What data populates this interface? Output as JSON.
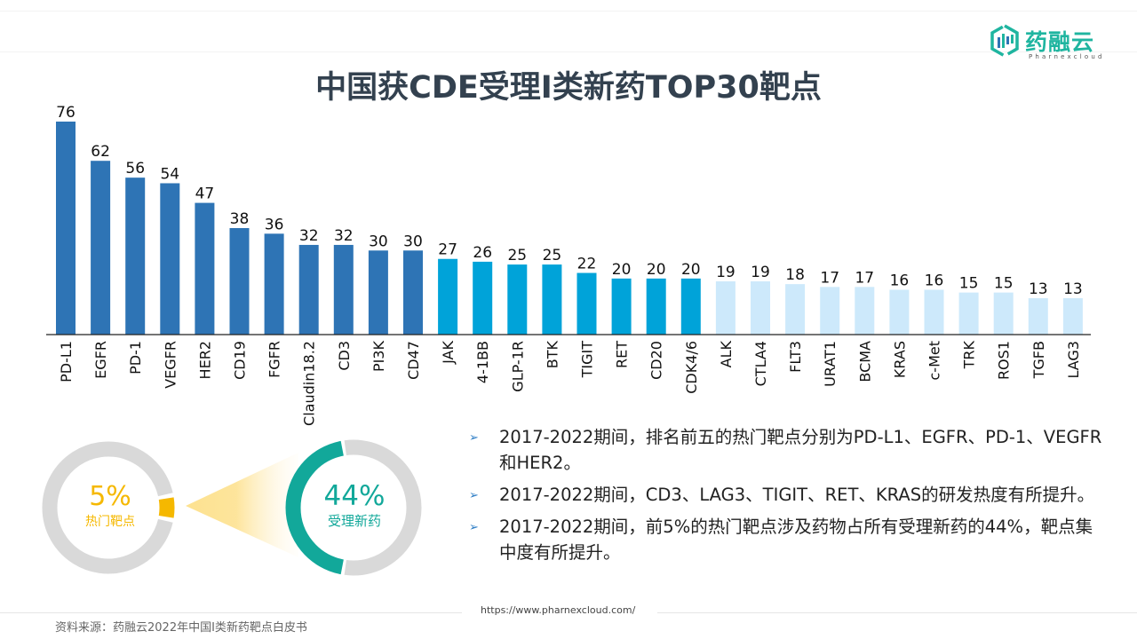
{
  "header": {
    "title": "中国获CDE受理I类新药TOP30靶点",
    "logo_text": "药融云",
    "logo_subtext": "Pharnexcloud"
  },
  "colors": {
    "top_tier": "#2e74b5",
    "mid_tier": "#00a3d9",
    "low_tier": "#cde9fb",
    "gold": "#f5b800",
    "teal": "#12a89a",
    "ring_gray": "#d9d9d9",
    "title": "#33414f"
  },
  "chart_data": {
    "type": "bar",
    "title": "中国获CDE受理I类新药TOP30靶点",
    "xlabel": "",
    "ylabel": "",
    "ylim": [
      0,
      76
    ],
    "grid": false,
    "legend": "none",
    "categories": [
      "PD-L1",
      "EGFR",
      "PD-1",
      "VEGFR",
      "HER2",
      "CD19",
      "FGFR",
      "Claudin18.2",
      "CD3",
      "PI3K",
      "CD47",
      "JAK",
      "4-1BB",
      "GLP-1R",
      "BTK",
      "TIGIT",
      "RET",
      "CD20",
      "CDK4/6",
      "ALK",
      "CTLA4",
      "FLT3",
      "URAT1",
      "BCMA",
      "KRAS",
      "c-Met",
      "TRK",
      "ROS1",
      "TGFB",
      "LAG3"
    ],
    "values": [
      76,
      62,
      56,
      54,
      47,
      38,
      36,
      32,
      32,
      30,
      30,
      27,
      26,
      25,
      25,
      22,
      20,
      20,
      20,
      19,
      19,
      18,
      17,
      17,
      16,
      16,
      15,
      15,
      13,
      13
    ],
    "tiers": [
      "top",
      "top",
      "top",
      "top",
      "top",
      "top",
      "top",
      "top",
      "top",
      "top",
      "top",
      "mid",
      "mid",
      "mid",
      "mid",
      "mid",
      "mid",
      "mid",
      "mid",
      "low",
      "low",
      "low",
      "low",
      "low",
      "low",
      "low",
      "low",
      "low",
      "low",
      "low"
    ]
  },
  "donuts": {
    "left": {
      "percent": 5,
      "value_text": "5%",
      "label": "热门靶点"
    },
    "right": {
      "percent": 44,
      "value_text": "44%",
      "label": "受理新药"
    }
  },
  "bullets": [
    "2017-2022期间，排名前五的热门靶点分别为PD-L1、EGFR、PD-1、VEGFR和HER2。",
    "2017-2022期间，CD3、LAG3、TIGIT、RET、KRAS的研发热度有所提升。",
    "2017-2022期间，前5%的热门靶点涉及药物占所有受理新药的44%，靶点集中度有所提升。"
  ],
  "bullet_marker": "➢",
  "footer": {
    "source": "资料来源：药融云2022年中国I类新药靶点白皮书",
    "url": "https://www.pharnexcloud.com/"
  }
}
